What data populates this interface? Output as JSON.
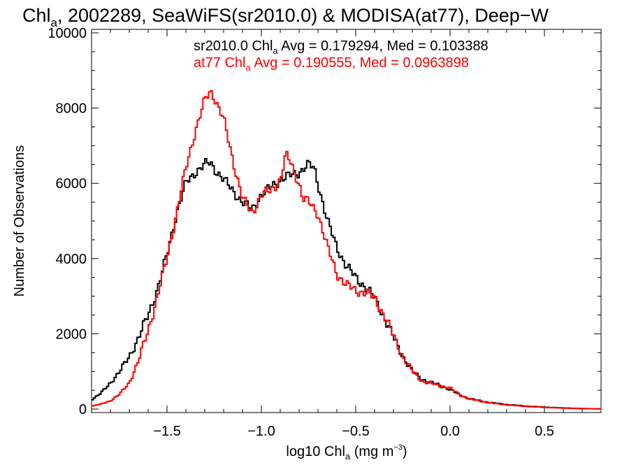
{
  "chart_data": {
    "type": "line",
    "title": {
      "pre": "Chl",
      "sub": "a",
      "post": ", 2002289, SeaWiFS(sr2010.0) & MODISA(at77), Deep−W"
    },
    "xlabel": {
      "pre": "log10 Chl",
      "sub": "a",
      "mid": " (mg m",
      "sup": "−3",
      "post": ")"
    },
    "ylabel": "Number of Observations",
    "xlim": [
      -1.9,
      0.8
    ],
    "ylim": [
      0,
      10000
    ],
    "x_ticks": [
      {
        "value": -1.5,
        "label": "−1.5"
      },
      {
        "value": -1.0,
        "label": "−1.0"
      },
      {
        "value": -0.5,
        "label": "−0.5"
      },
      {
        "value": 0.0,
        "label": "0.0"
      },
      {
        "value": 0.5,
        "label": "0.5"
      }
    ],
    "y_ticks": [
      {
        "value": 0,
        "label": "0"
      },
      {
        "value": 2000,
        "label": "2000"
      },
      {
        "value": 4000,
        "label": "4000"
      },
      {
        "value": 6000,
        "label": "6000"
      },
      {
        "value": 8000,
        "label": "8000"
      },
      {
        "value": 10000,
        "label": "10000"
      }
    ],
    "grid": false,
    "legend": "top-center",
    "series": [
      {
        "name": "sr2010.0",
        "color": "#000000",
        "legend": {
          "pre": "sr2010.0 Chl",
          "sub": "a",
          "post": " Avg = 0.179294, Med = 0.103388"
        },
        "points": [
          [
            -1.9,
            250
          ],
          [
            -1.85,
            420
          ],
          [
            -1.8,
            700
          ],
          [
            -1.75,
            1000
          ],
          [
            -1.7,
            1400
          ],
          [
            -1.65,
            1900
          ],
          [
            -1.6,
            2500
          ],
          [
            -1.55,
            3200
          ],
          [
            -1.5,
            4100
          ],
          [
            -1.45,
            5200
          ],
          [
            -1.4,
            6000
          ],
          [
            -1.35,
            6300
          ],
          [
            -1.3,
            6500
          ],
          [
            -1.27,
            6550
          ],
          [
            -1.25,
            6400
          ],
          [
            -1.2,
            6100
          ],
          [
            -1.15,
            5800
          ],
          [
            -1.1,
            5500
          ],
          [
            -1.05,
            5300
          ],
          [
            -1.0,
            5700
          ],
          [
            -0.95,
            5900
          ],
          [
            -0.9,
            6100
          ],
          [
            -0.85,
            6200
          ],
          [
            -0.8,
            6300
          ],
          [
            -0.75,
            6500
          ],
          [
            -0.72,
            6400
          ],
          [
            -0.7,
            6000
          ],
          [
            -0.65,
            5000
          ],
          [
            -0.6,
            4300
          ],
          [
            -0.55,
            3800
          ],
          [
            -0.5,
            3500
          ],
          [
            -0.45,
            3250
          ],
          [
            -0.4,
            2950
          ],
          [
            -0.35,
            2450
          ],
          [
            -0.3,
            1900
          ],
          [
            -0.25,
            1400
          ],
          [
            -0.2,
            1000
          ],
          [
            -0.15,
            800
          ],
          [
            -0.1,
            700
          ],
          [
            -0.05,
            620
          ],
          [
            0.0,
            520
          ],
          [
            0.05,
            380
          ],
          [
            0.1,
            280
          ],
          [
            0.2,
            180
          ],
          [
            0.3,
            120
          ],
          [
            0.4,
            80
          ],
          [
            0.5,
            50
          ],
          [
            0.6,
            30
          ],
          [
            0.7,
            15
          ],
          [
            0.8,
            5
          ]
        ]
      },
      {
        "name": "at77",
        "color": "#ff0000",
        "legend": {
          "pre": "at77 Chl",
          "sub": "a",
          "post": " Avg = 0.190555, Med = 0.0963898"
        },
        "points": [
          [
            -1.9,
            80
          ],
          [
            -1.85,
            130
          ],
          [
            -1.8,
            220
          ],
          [
            -1.75,
            400
          ],
          [
            -1.7,
            700
          ],
          [
            -1.65,
            1300
          ],
          [
            -1.6,
            2100
          ],
          [
            -1.55,
            3000
          ],
          [
            -1.5,
            4000
          ],
          [
            -1.45,
            5200
          ],
          [
            -1.4,
            6400
          ],
          [
            -1.35,
            7400
          ],
          [
            -1.3,
            8200
          ],
          [
            -1.27,
            8450
          ],
          [
            -1.25,
            8300
          ],
          [
            -1.2,
            7700
          ],
          [
            -1.15,
            6600
          ],
          [
            -1.1,
            5600
          ],
          [
            -1.05,
            5200
          ],
          [
            -1.0,
            5700
          ],
          [
            -0.95,
            5800
          ],
          [
            -0.9,
            6100
          ],
          [
            -0.87,
            6750
          ],
          [
            -0.85,
            6600
          ],
          [
            -0.8,
            6000
          ],
          [
            -0.78,
            5600
          ],
          [
            -0.75,
            5500
          ],
          [
            -0.7,
            5200
          ],
          [
            -0.65,
            4300
          ],
          [
            -0.6,
            3600
          ],
          [
            -0.55,
            3300
          ],
          [
            -0.5,
            3150
          ],
          [
            -0.45,
            3100
          ],
          [
            -0.4,
            2950
          ],
          [
            -0.35,
            2500
          ],
          [
            -0.3,
            1950
          ],
          [
            -0.25,
            1400
          ],
          [
            -0.2,
            1000
          ],
          [
            -0.15,
            750
          ],
          [
            -0.1,
            680
          ],
          [
            -0.05,
            620
          ],
          [
            0.0,
            560
          ],
          [
            0.05,
            380
          ],
          [
            0.1,
            270
          ],
          [
            0.2,
            170
          ],
          [
            0.3,
            110
          ],
          [
            0.4,
            70
          ],
          [
            0.5,
            45
          ],
          [
            0.6,
            25
          ],
          [
            0.7,
            12
          ],
          [
            0.8,
            5
          ]
        ]
      }
    ]
  }
}
